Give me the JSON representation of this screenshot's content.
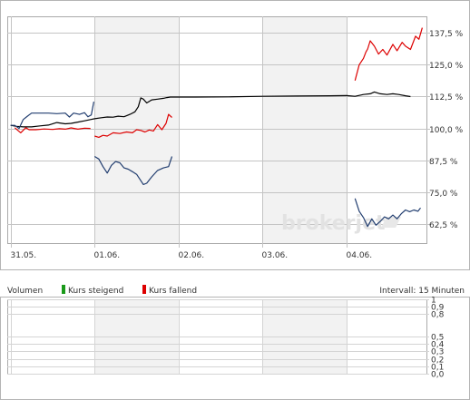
{
  "chart_data": [
    {
      "type": "line",
      "title": "",
      "xlabel": "",
      "ylabel": "",
      "y_unit": "%",
      "ylim": [
        55,
        144
      ],
      "y_ticks": [
        {
          "value": 137.5,
          "label": "137,5 %"
        },
        {
          "value": 125.0,
          "label": "125,0 %"
        },
        {
          "value": 112.5,
          "label": "112,5 %"
        },
        {
          "value": 100.0,
          "label": "100,0 %"
        },
        {
          "value": 87.5,
          "label": "87,5 %"
        },
        {
          "value": 75.0,
          "label": "75,0 %"
        },
        {
          "value": 62.5,
          "label": "62,5 %"
        }
      ],
      "x_ticks": [
        {
          "value": 0.0,
          "label": "31.05."
        },
        {
          "value": 1.0,
          "label": "01.06."
        },
        {
          "value": 2.0,
          "label": "02.06."
        },
        {
          "value": 3.0,
          "label": "03.06."
        },
        {
          "value": 4.0,
          "label": "04.06."
        }
      ],
      "xlim": [
        -0.04,
        4.95
      ],
      "shaded_days": [
        [
          1.0,
          2.0
        ],
        [
          3.0,
          4.0
        ]
      ],
      "grid": true,
      "watermark": "brokerjet",
      "colors": {
        "up": "#dd0000",
        "neutral": "#000000",
        "down": "#223e70",
        "shade": "#f2f2f2",
        "grid": "#aaaaaa"
      },
      "series": [
        {
          "color": "#000000",
          "points": [
            [
              0.0,
              101.2
            ],
            [
              0.07,
              100.8
            ],
            [
              0.15,
              100.6
            ],
            [
              0.25,
              100.6
            ],
            [
              0.35,
              101.0
            ],
            [
              0.45,
              101.3
            ],
            [
              0.55,
              102.3
            ],
            [
              0.65,
              101.8
            ],
            [
              0.72,
              102.0
            ],
            [
              0.8,
              102.5
            ],
            [
              0.88,
              103.0
            ],
            [
              0.95,
              103.5
            ],
            [
              1.0,
              103.8
            ],
            [
              1.08,
              104.2
            ],
            [
              1.15,
              104.5
            ],
            [
              1.22,
              104.4
            ],
            [
              1.28,
              104.8
            ],
            [
              1.35,
              104.6
            ],
            [
              1.42,
              105.5
            ],
            [
              1.48,
              106.5
            ],
            [
              1.52,
              108.5
            ],
            [
              1.55,
              112.0
            ],
            [
              1.58,
              111.5
            ],
            [
              1.62,
              110.0
            ],
            [
              1.68,
              111.2
            ],
            [
              1.75,
              111.5
            ],
            [
              1.82,
              111.8
            ],
            [
              1.86,
              112.1
            ],
            [
              1.9,
              112.3
            ],
            [
              2.2,
              112.3
            ],
            [
              2.6,
              112.4
            ],
            [
              3.0,
              112.6
            ],
            [
              3.4,
              112.7
            ],
            [
              3.8,
              112.8
            ],
            [
              4.0,
              112.9
            ],
            [
              4.1,
              112.6
            ],
            [
              4.2,
              113.3
            ],
            [
              4.28,
              113.6
            ],
            [
              4.33,
              114.3
            ],
            [
              4.4,
              113.6
            ],
            [
              4.48,
              113.3
            ],
            [
              4.55,
              113.6
            ],
            [
              4.62,
              113.3
            ],
            [
              4.7,
              112.8
            ],
            [
              4.76,
              112.5
            ]
          ]
        },
        {
          "color": "#dd0000",
          "segments": [
            [
              [
                0.05,
                100.3
              ],
              [
                0.12,
                98.3
              ],
              [
                0.18,
                100.3
              ],
              [
                0.22,
                99.5
              ],
              [
                0.3,
                99.5
              ],
              [
                0.4,
                99.8
              ],
              [
                0.5,
                99.6
              ],
              [
                0.58,
                99.9
              ],
              [
                0.65,
                99.7
              ],
              [
                0.72,
                100.2
              ],
              [
                0.8,
                99.7
              ],
              [
                0.88,
                100.1
              ],
              [
                0.95,
                100.0
              ]
            ],
            [
              [
                1.0,
                97.0
              ],
              [
                1.05,
                96.5
              ],
              [
                1.1,
                97.3
              ],
              [
                1.15,
                97.0
              ],
              [
                1.22,
                98.3
              ],
              [
                1.3,
                98.0
              ],
              [
                1.38,
                98.6
              ],
              [
                1.45,
                98.3
              ],
              [
                1.5,
                99.5
              ],
              [
                1.55,
                99.2
              ],
              [
                1.6,
                98.6
              ],
              [
                1.65,
                99.4
              ],
              [
                1.7,
                99.0
              ],
              [
                1.75,
                101.5
              ],
              [
                1.8,
                99.5
              ],
              [
                1.85,
                102.0
              ],
              [
                1.88,
                105.5
              ],
              [
                1.92,
                104.3
              ]
            ],
            [
              [
                4.1,
                118.8
              ],
              [
                4.15,
                125.0
              ],
              [
                4.2,
                127.5
              ],
              [
                4.23,
                130.0
              ],
              [
                4.25,
                131.2
              ],
              [
                4.28,
                134.4
              ],
              [
                4.33,
                132.3
              ],
              [
                4.38,
                129.2
              ],
              [
                4.43,
                131.0
              ],
              [
                4.48,
                128.8
              ],
              [
                4.55,
                133.0
              ],
              [
                4.6,
                130.5
              ],
              [
                4.66,
                133.8
              ],
              [
                4.7,
                132.3
              ],
              [
                4.76,
                131.0
              ],
              [
                4.82,
                136.2
              ],
              [
                4.86,
                135.0
              ],
              [
                4.9,
                139.5
              ]
            ]
          ]
        },
        {
          "color": "#223e70",
          "segments": [
            [
              [
                0.0,
                101.2
              ],
              [
                0.05,
                101.2
              ],
              [
                0.1,
                100.0
              ],
              [
                0.15,
                103.5
              ],
              [
                0.2,
                104.8
              ],
              [
                0.25,
                106.0
              ],
              [
                0.35,
                106.0
              ],
              [
                0.45,
                106.0
              ],
              [
                0.55,
                105.8
              ],
              [
                0.65,
                106.0
              ],
              [
                0.7,
                104.5
              ],
              [
                0.75,
                106.0
              ],
              [
                0.82,
                105.5
              ],
              [
                0.88,
                106.2
              ],
              [
                0.92,
                104.6
              ],
              [
                0.96,
                105.3
              ],
              [
                0.99,
                110.5
              ]
            ],
            [
              [
                1.0,
                89.0
              ],
              [
                1.05,
                88.0
              ],
              [
                1.1,
                85.0
              ],
              [
                1.15,
                82.5
              ],
              [
                1.2,
                85.5
              ],
              [
                1.25,
                87.0
              ],
              [
                1.3,
                86.5
              ],
              [
                1.35,
                84.5
              ],
              [
                1.4,
                84.0
              ],
              [
                1.45,
                83.0
              ],
              [
                1.5,
                82.0
              ],
              [
                1.55,
                79.5
              ],
              [
                1.58,
                78.0
              ],
              [
                1.62,
                78.5
              ],
              [
                1.68,
                81.0
              ],
              [
                1.75,
                83.5
              ],
              [
                1.82,
                84.5
              ],
              [
                1.88,
                85.0
              ],
              [
                1.92,
                89.0
              ]
            ],
            [
              [
                4.1,
                72.5
              ],
              [
                4.15,
                67.5
              ],
              [
                4.2,
                65.0
              ],
              [
                4.25,
                61.5
              ],
              [
                4.3,
                64.5
              ],
              [
                4.35,
                62.0
              ],
              [
                4.4,
                63.5
              ],
              [
                4.45,
                65.3
              ],
              [
                4.5,
                64.5
              ],
              [
                4.55,
                66.0
              ],
              [
                4.6,
                64.5
              ],
              [
                4.65,
                66.5
              ],
              [
                4.7,
                68.0
              ],
              [
                4.75,
                67.3
              ],
              [
                4.8,
                68.0
              ],
              [
                4.85,
                67.5
              ],
              [
                4.88,
                68.8
              ]
            ]
          ]
        }
      ]
    },
    {
      "type": "bar",
      "title": "",
      "header": {
        "volume_label": "Volumen",
        "legend": [
          {
            "name": "Kurs steigend",
            "color": "#1a9a1a"
          },
          {
            "name": "Kurs fallend",
            "color": "#dd0000"
          }
        ],
        "interval_label": "Intervall: 15 Minuten"
      },
      "ylim": [
        0,
        1
      ],
      "y_ticks": [
        {
          "value": 1.0,
          "label": "1"
        },
        {
          "value": 0.9,
          "label": "0,9"
        },
        {
          "value": 0.8,
          "label": "0,8"
        },
        {
          "value": 0.5,
          "label": "0,5"
        },
        {
          "value": 0.4,
          "label": "0,4"
        },
        {
          "value": 0.3,
          "label": "0,3"
        },
        {
          "value": 0.2,
          "label": "0,2"
        },
        {
          "value": 0.1,
          "label": "0,1"
        },
        {
          "value": 0.0,
          "label": "0,0"
        }
      ],
      "xlim": [
        -0.04,
        4.95
      ],
      "shaded_days": [
        [
          1.0,
          2.0
        ],
        [
          3.0,
          4.0
        ]
      ],
      "values": []
    }
  ]
}
